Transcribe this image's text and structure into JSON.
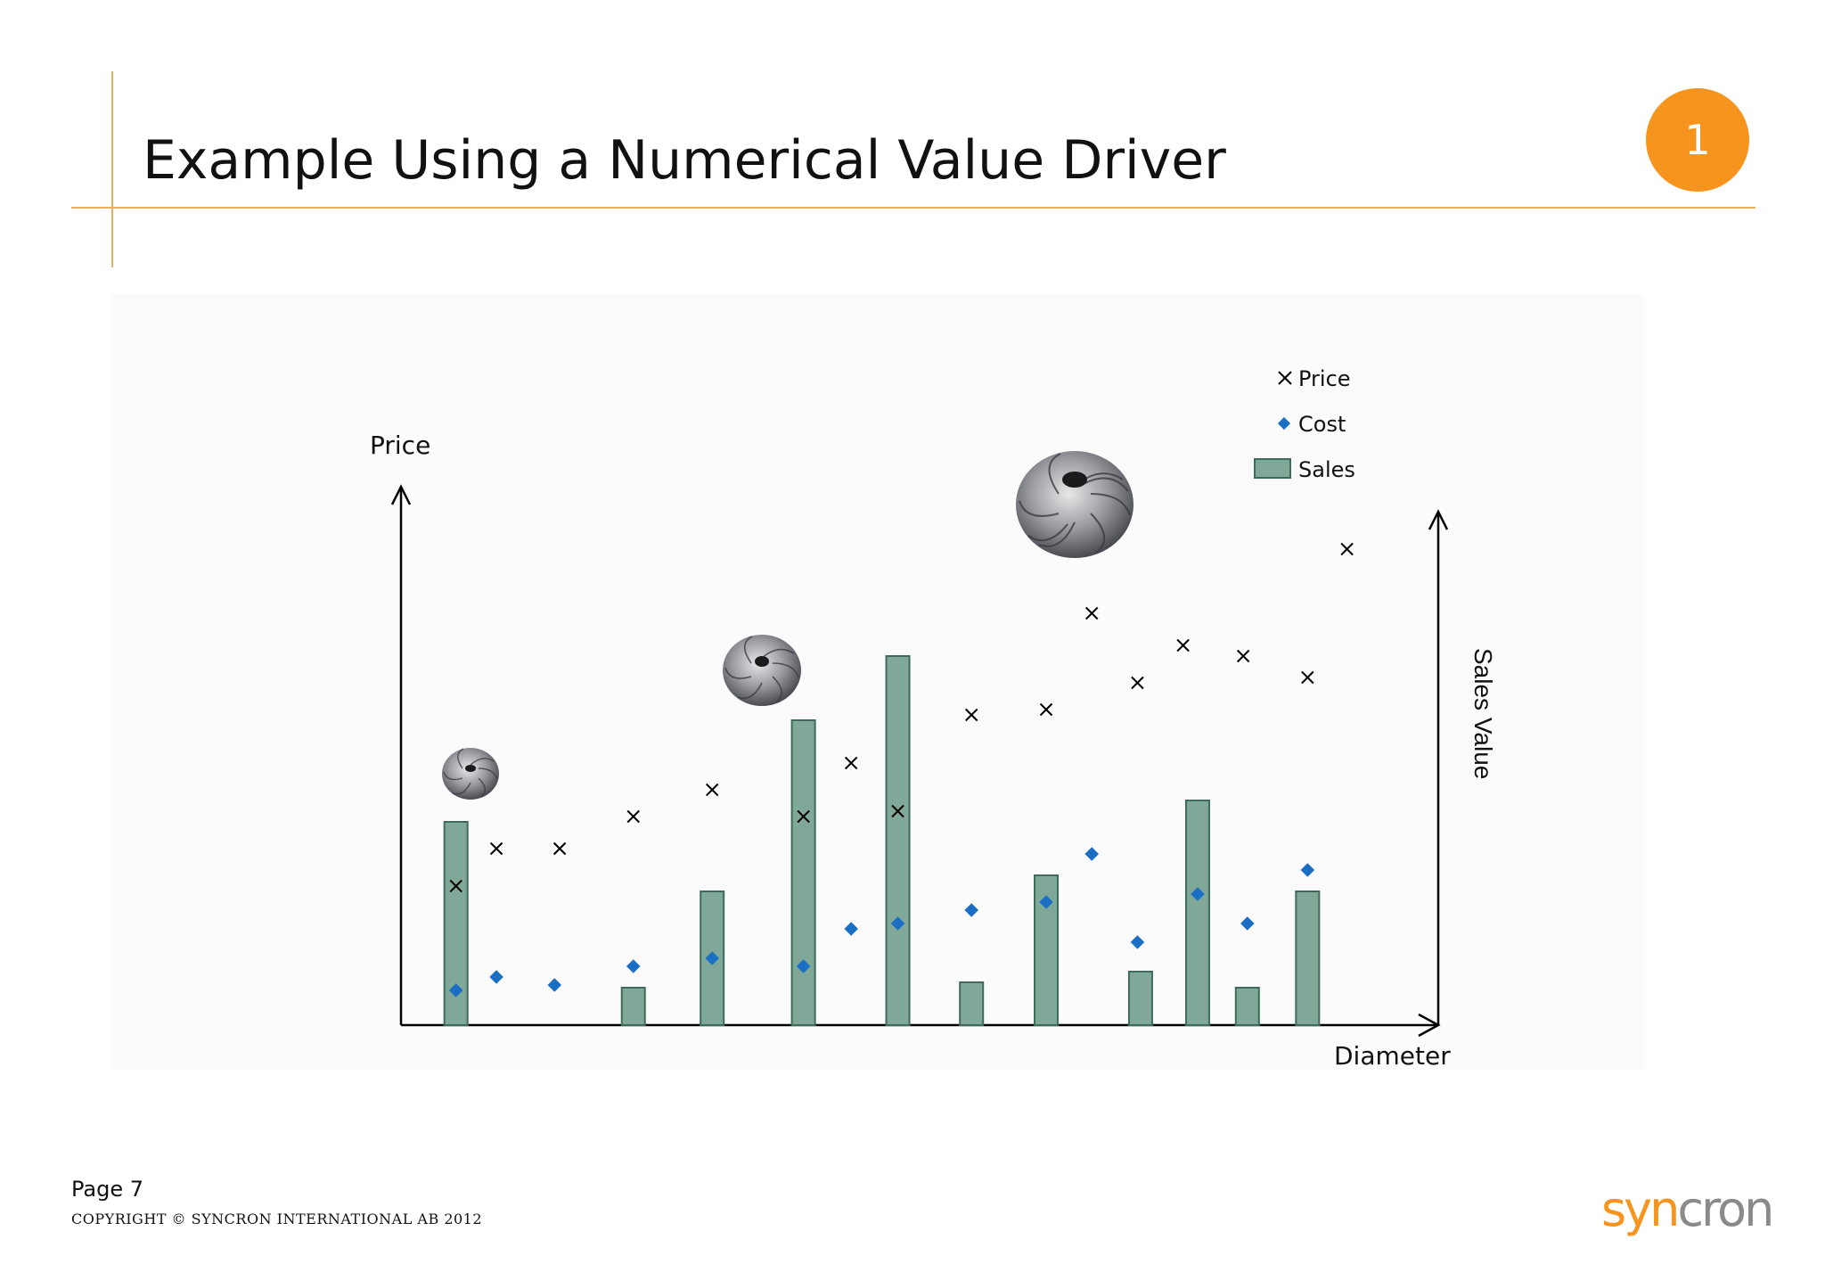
{
  "slide": {
    "title": "Example Using a Numerical Value Driver",
    "badge": "1",
    "page": "Page 7",
    "copyright": "COPYRIGHT © SYNCRON INTERNATIONAL AB 2012",
    "logo_part1": "syn",
    "logo_part2": "cron"
  },
  "colors": {
    "accent_orange": "#f7941d",
    "rule_orange": "#e8b060",
    "bar_fill": "#80a898",
    "bar_stroke": "#3e6b5a",
    "cost_marker": "#1a6fc4"
  },
  "chart_data": {
    "type": "bar+scatter",
    "xlabel": "Diameter",
    "ylabel_left": "Price",
    "ylabel_right": "Sales Value",
    "legend": {
      "placement": "top-right",
      "entries": [
        "Price",
        "Cost",
        "Sales"
      ]
    },
    "ticks_shown": false,
    "grid": false,
    "xlim": [
      0,
      100
    ],
    "ylim": [
      0,
      100
    ],
    "sales_ylim": [
      0,
      100
    ],
    "sales": [
      {
        "x": 5.3,
        "value": 38
      },
      {
        "x": 22.4,
        "value": 7
      },
      {
        "x": 30.0,
        "value": 25
      },
      {
        "x": 38.8,
        "value": 57
      },
      {
        "x": 47.9,
        "value": 69
      },
      {
        "x": 55.0,
        "value": 8
      },
      {
        "x": 62.2,
        "value": 28
      },
      {
        "x": 71.3,
        "value": 10
      },
      {
        "x": 76.8,
        "value": 42
      },
      {
        "x": 81.6,
        "value": 7
      },
      {
        "x": 87.4,
        "value": 25
      }
    ],
    "price": [
      {
        "x": 5.3,
        "y": 26
      },
      {
        "x": 9.2,
        "y": 33
      },
      {
        "x": 15.3,
        "y": 33
      },
      {
        "x": 22.4,
        "y": 39
      },
      {
        "x": 30.0,
        "y": 44
      },
      {
        "x": 38.8,
        "y": 39
      },
      {
        "x": 43.4,
        "y": 49
      },
      {
        "x": 47.9,
        "y": 40
      },
      {
        "x": 55.0,
        "y": 58
      },
      {
        "x": 62.2,
        "y": 59
      },
      {
        "x": 66.6,
        "y": 77
      },
      {
        "x": 71.0,
        "y": 64
      },
      {
        "x": 75.4,
        "y": 71
      },
      {
        "x": 81.2,
        "y": 69
      },
      {
        "x": 87.4,
        "y": 65
      },
      {
        "x": 91.2,
        "y": 89
      }
    ],
    "cost": [
      {
        "x": 5.3,
        "y": 6.5
      },
      {
        "x": 9.2,
        "y": 9
      },
      {
        "x": 14.8,
        "y": 7.5
      },
      {
        "x": 22.4,
        "y": 11
      },
      {
        "x": 30.0,
        "y": 12.5
      },
      {
        "x": 38.8,
        "y": 11
      },
      {
        "x": 43.4,
        "y": 18
      },
      {
        "x": 47.9,
        "y": 19
      },
      {
        "x": 55.0,
        "y": 21.5
      },
      {
        "x": 62.2,
        "y": 23
      },
      {
        "x": 66.6,
        "y": 32
      },
      {
        "x": 71.0,
        "y": 15.5
      },
      {
        "x": 76.8,
        "y": 24.5
      },
      {
        "x": 81.6,
        "y": 19
      },
      {
        "x": 87.4,
        "y": 29
      }
    ]
  }
}
